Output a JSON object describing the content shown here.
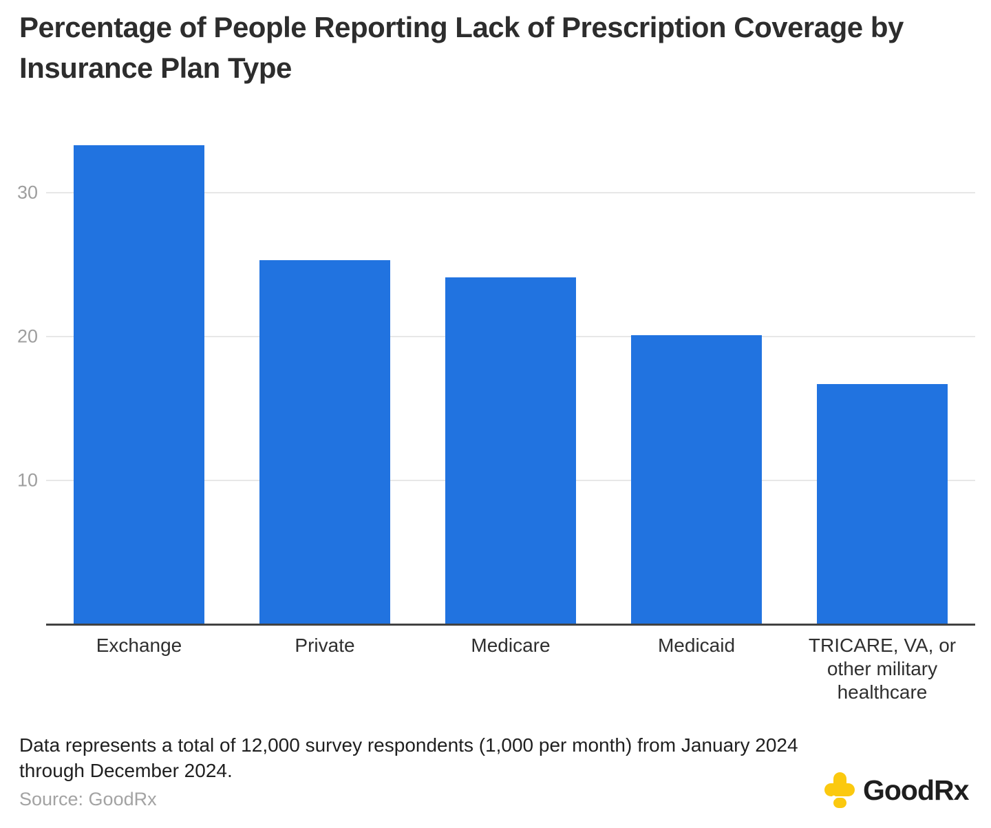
{
  "title": "Percentage of People Reporting Lack of Prescription Coverage by Insurance Plan Type",
  "footer": {
    "note": "Data represents a total of 12,000 survey respondents (1,000 per month) from January 2024 through December 2024.",
    "source": "Source: GoodRx"
  },
  "logo": {
    "brand": "GoodRx",
    "icon": "goodrx-cross-icon"
  },
  "colors": {
    "bar": "#2173E0",
    "gridline": "#E7E7E7",
    "axis": "#424242",
    "ytick": "#9E9E9E",
    "label": "#2F2F2F",
    "title": "#2D2D2D",
    "note": "#1F1F1F",
    "source": "#A3A3A3",
    "logo_yellow": "#FBC90F",
    "logo_text": "#1E1E1E"
  },
  "chart_data": {
    "type": "bar",
    "title": "Percentage of People Reporting Lack of Prescription Coverage by Insurance Plan Type",
    "categories": [
      "Exchange",
      "Private",
      "Medicare",
      "Medicaid",
      "TRICARE, VA, or other military healthcare"
    ],
    "values": [
      33.3,
      25.3,
      24.1,
      20.1,
      16.7
    ],
    "xlabel": "",
    "ylabel": "",
    "yticks": [
      10,
      20,
      30
    ],
    "ylim": [
      0,
      35.72
    ],
    "grid": true,
    "legend": false,
    "bar_color": "#2173E0",
    "units": "percent"
  }
}
